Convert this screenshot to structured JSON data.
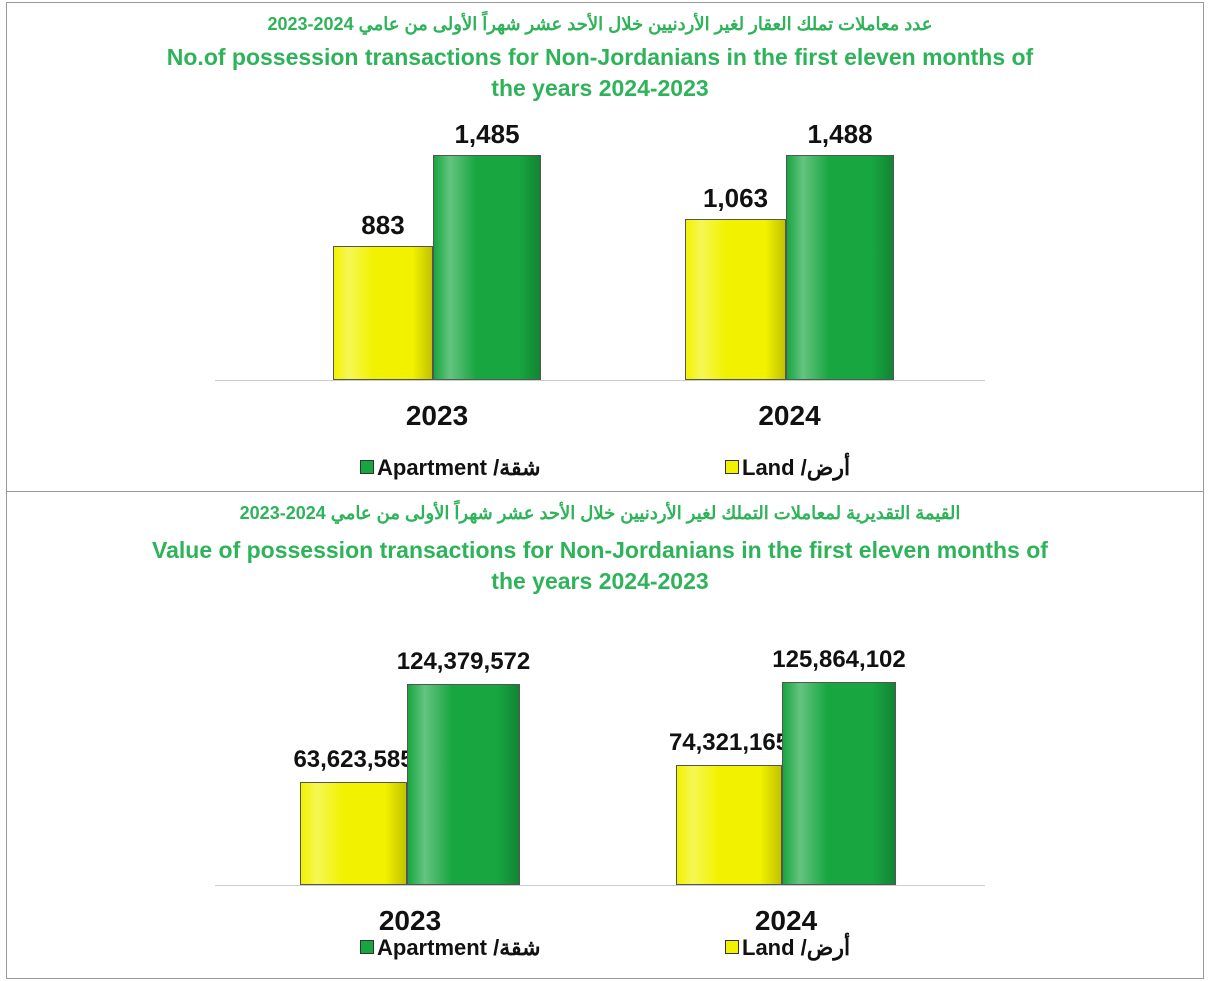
{
  "chart_data": [
    {
      "type": "bar",
      "title_ar": "عدد معاملات تملك العقار لغير الأردنيين خلال الأحد عشر شهراً الأولى من عامي 2024-2023",
      "title": "No.of possession transactions for Non-Jordanians in the first eleven months of the years 2024-2023",
      "categories": [
        "2023",
        "2024"
      ],
      "series": [
        {
          "name": "Land /أرض",
          "color": "#f2f200",
          "values": [
            883,
            1063
          ],
          "value_labels": [
            "883",
            "1,063"
          ]
        },
        {
          "name": "Apartment /شقة",
          "color": "#17a640",
          "values": [
            1485,
            1488
          ],
          "value_labels": [
            "1,485",
            "1,488"
          ]
        }
      ]
    },
    {
      "type": "bar",
      "title_ar": "القيمة التقديرية لمعاملات التملك لغير الأردنيين خلال الأحد عشر شهراً الأولى من عامي 2024-2023",
      "title": "Value of possession transactions for Non-Jordanians in the first eleven  months of the years 2024-2023",
      "categories": [
        "2023",
        "2024"
      ],
      "series": [
        {
          "name": "Land /أرض",
          "color": "#f2f200",
          "values": [
            63623585,
            74321165
          ],
          "value_labels": [
            "63,623,585",
            "74,321,165"
          ]
        },
        {
          "name": "Apartment /شقة",
          "color": "#17a640",
          "values": [
            124379572,
            125864102
          ],
          "value_labels": [
            "124,379,572",
            "125,864,102"
          ]
        }
      ]
    }
  ]
}
